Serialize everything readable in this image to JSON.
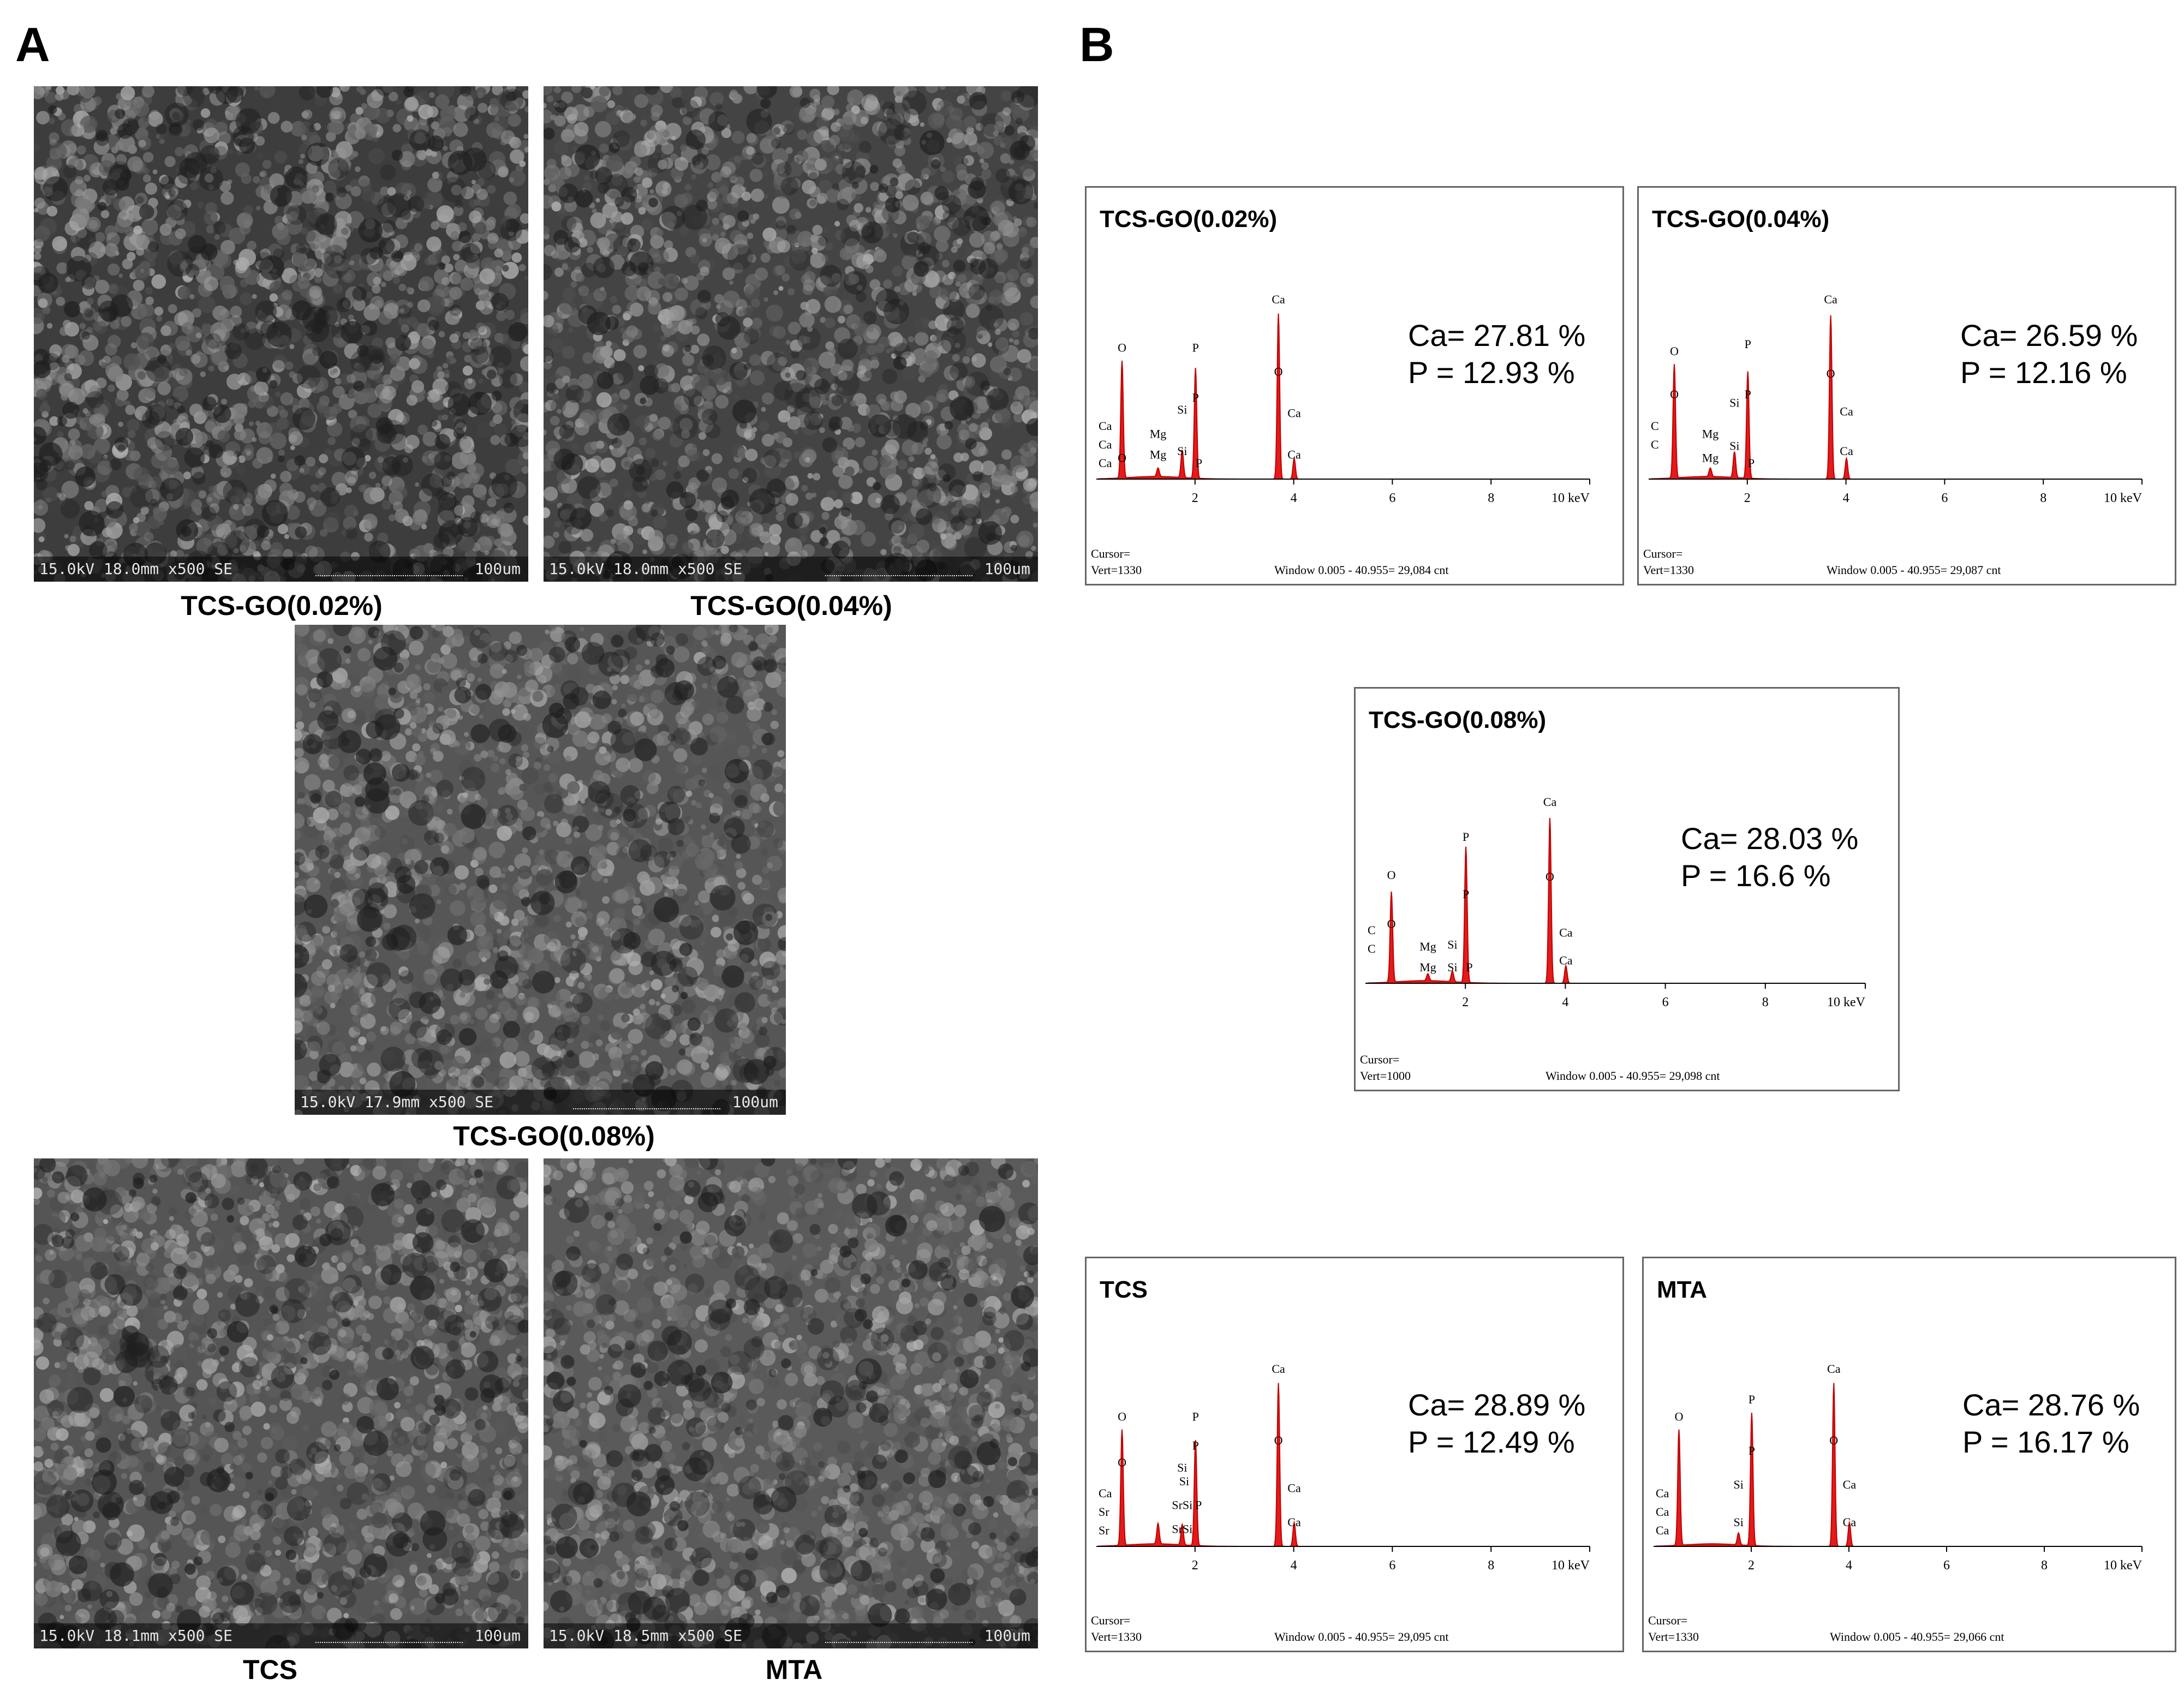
{
  "panels": {
    "a": "A",
    "b": "B"
  },
  "sem_images": [
    {
      "caption": "TCS-GO(0.02%)",
      "info": "15.0kV 18.0mm x500 SE",
      "scale": "100um",
      "tone": "#3d3d3d"
    },
    {
      "caption": "TCS-GO(0.04%)",
      "info": "15.0kV 18.0mm x500 SE",
      "scale": "100um",
      "tone": "#444444"
    },
    {
      "caption": "TCS-GO(0.08%)",
      "info": "15.0kV 17.9mm x500 SE",
      "scale": "100um",
      "tone": "#565656"
    },
    {
      "caption": "TCS",
      "info": "15.0kV 18.1mm x500 SE",
      "scale": "100um",
      "tone": "#555555"
    },
    {
      "caption": "MTA",
      "info": "15.0kV 18.5mm x500 SE",
      "scale": "100um",
      "tone": "#5a5a5a"
    }
  ],
  "edx_spectra": [
    {
      "title": "TCS-GO(0.02%)",
      "ca_text": "Ca=  27.81 %",
      "p_text": "P  =  12.93 %",
      "cursor": "Cursor=",
      "vert": "Vert=1330",
      "window": "Window 0.005 - 40.955=   29,084 cnt",
      "low_labels": [
        "Ca",
        "Ca",
        "Ca"
      ],
      "peak_labels": [
        {
          "kev": 0.52,
          "text": "O",
          "h": 0.72
        },
        {
          "kev": 0.52,
          "text": "O",
          "h": 0.08
        },
        {
          "kev": 1.25,
          "text": "Mg",
          "h": 0.22
        },
        {
          "kev": 1.25,
          "text": "Mg",
          "h": 0.1
        },
        {
          "kev": 1.74,
          "text": "Si",
          "h": 0.36
        },
        {
          "kev": 1.74,
          "text": "Si",
          "h": 0.12
        },
        {
          "kev": 2.01,
          "text": "P",
          "h": 0.72
        },
        {
          "kev": 2.01,
          "text": "P",
          "h": 0.43
        },
        {
          "kev": 2.08,
          "text": "P",
          "h": 0.05
        },
        {
          "kev": 3.69,
          "text": "Ca",
          "h": 1.0
        },
        {
          "kev": 3.69,
          "text": "O",
          "h": 0.58
        },
        {
          "kev": 4.01,
          "text": "Ca",
          "h": 0.34
        },
        {
          "kev": 4.01,
          "text": "Ca",
          "h": 0.1
        }
      ],
      "peaks": [
        {
          "kev": 0.52,
          "h": 0.68
        },
        {
          "kev": 1.25,
          "h": 0.05
        },
        {
          "kev": 1.74,
          "h": 0.16
        },
        {
          "kev": 2.01,
          "h": 0.64
        },
        {
          "kev": 3.69,
          "h": 0.96
        },
        {
          "kev": 4.01,
          "h": 0.12
        }
      ]
    },
    {
      "title": "TCS-GO(0.04%)",
      "ca_text": "Ca=  26.59 %",
      "p_text": "P  =  12.16 %",
      "cursor": "Cursor=",
      "vert": "Vert=1330",
      "window": "Window 0.005 - 40.955=   29,087 cnt",
      "low_labels": [
        "C",
        "C"
      ],
      "peak_labels": [
        {
          "kev": 0.52,
          "text": "O",
          "h": 0.7
        },
        {
          "kev": 0.52,
          "text": "O",
          "h": 0.45
        },
        {
          "kev": 1.25,
          "text": "Mg",
          "h": 0.22
        },
        {
          "kev": 1.25,
          "text": "Mg",
          "h": 0.08
        },
        {
          "kev": 1.74,
          "text": "Si",
          "h": 0.4
        },
        {
          "kev": 1.74,
          "text": "Si",
          "h": 0.15
        },
        {
          "kev": 2.01,
          "text": "P",
          "h": 0.74
        },
        {
          "kev": 2.01,
          "text": "P",
          "h": 0.45
        },
        {
          "kev": 2.08,
          "text": "P",
          "h": 0.05
        },
        {
          "kev": 3.69,
          "text": "Ca",
          "h": 1.0
        },
        {
          "kev": 3.69,
          "text": "O",
          "h": 0.57
        },
        {
          "kev": 4.01,
          "text": "Ca",
          "h": 0.35
        },
        {
          "kev": 4.01,
          "text": "Ca",
          "h": 0.12
        }
      ],
      "peaks": [
        {
          "kev": 0.52,
          "h": 0.66
        },
        {
          "kev": 1.25,
          "h": 0.05
        },
        {
          "kev": 1.74,
          "h": 0.15
        },
        {
          "kev": 2.01,
          "h": 0.62
        },
        {
          "kev": 3.69,
          "h": 0.95
        },
        {
          "kev": 4.01,
          "h": 0.12
        }
      ]
    },
    {
      "title": "TCS-GO(0.08%)",
      "ca_text": "Ca= 28.03 %",
      "p_text": "P  = 16.6 %",
      "cursor": "Cursor=",
      "vert": "Vert=1000",
      "window": "Window 0.005 - 40.955=   29,098 cnt",
      "low_labels": [
        "C",
        "C"
      ],
      "peak_labels": [
        {
          "kev": 0.52,
          "text": "O",
          "h": 0.58
        },
        {
          "kev": 0.52,
          "text": "O",
          "h": 0.3
        },
        {
          "kev": 1.25,
          "text": "Mg",
          "h": 0.17
        },
        {
          "kev": 1.25,
          "text": "Mg",
          "h": 0.05
        },
        {
          "kev": 1.74,
          "text": "Si",
          "h": 0.18
        },
        {
          "kev": 1.74,
          "text": "Si",
          "h": 0.05
        },
        {
          "kev": 2.01,
          "text": "P",
          "h": 0.8
        },
        {
          "kev": 2.01,
          "text": "P",
          "h": 0.47
        },
        {
          "kev": 2.08,
          "text": "P",
          "h": 0.05
        },
        {
          "kev": 3.69,
          "text": "Ca",
          "h": 1.0
        },
        {
          "kev": 3.69,
          "text": "O",
          "h": 0.57
        },
        {
          "kev": 4.01,
          "text": "Ca",
          "h": 0.25
        },
        {
          "kev": 4.01,
          "text": "Ca",
          "h": 0.09
        }
      ],
      "peaks": [
        {
          "kev": 0.52,
          "h": 0.52
        },
        {
          "kev": 1.25,
          "h": 0.04
        },
        {
          "kev": 1.74,
          "h": 0.06
        },
        {
          "kev": 2.01,
          "h": 0.78
        },
        {
          "kev": 3.69,
          "h": 0.95
        },
        {
          "kev": 4.01,
          "h": 0.1
        }
      ]
    },
    {
      "title": "TCS",
      "ca_text": "Ca= 28.89 %",
      "p_text": "P  = 12.49 %",
      "cursor": "Cursor=",
      "vert": "Vert=1330",
      "window": "Window 0.005 - 40.955=   29,095 cnt",
      "low_labels": [
        "Ca",
        "Sr",
        "Sr"
      ],
      "peak_labels": [
        {
          "kev": 0.52,
          "text": "O",
          "h": 0.72
        },
        {
          "kev": 0.52,
          "text": "O",
          "h": 0.45
        },
        {
          "kev": 1.74,
          "text": "Si",
          "h": 0.42
        },
        {
          "kev": 1.78,
          "text": "Si",
          "h": 0.34
        },
        {
          "kev": 1.74,
          "text": "SrSi",
          "h": 0.2
        },
        {
          "kev": 1.74,
          "text": "SrSi",
          "h": 0.06
        },
        {
          "kev": 2.01,
          "text": "P",
          "h": 0.72
        },
        {
          "kev": 2.01,
          "text": "P",
          "h": 0.55
        },
        {
          "kev": 2.07,
          "text": "P",
          "h": 0.2
        },
        {
          "kev": 3.69,
          "text": "Ca",
          "h": 1.0
        },
        {
          "kev": 3.69,
          "text": "O",
          "h": 0.58
        },
        {
          "kev": 4.01,
          "text": "Ca",
          "h": 0.3
        },
        {
          "kev": 4.01,
          "text": "Ca",
          "h": 0.1
        }
      ],
      "peaks": [
        {
          "kev": 0.52,
          "h": 0.68
        },
        {
          "kev": 1.25,
          "h": 0.12
        },
        {
          "kev": 1.74,
          "h": 0.12
        },
        {
          "kev": 2.01,
          "h": 0.62
        },
        {
          "kev": 3.69,
          "h": 0.96
        },
        {
          "kev": 4.01,
          "h": 0.14
        }
      ]
    },
    {
      "title": "MTA",
      "ca_text": "Ca= 28.76 %",
      "p_text": "P  = 16.17 %",
      "cursor": "Cursor=",
      "vert": "Vert=1330",
      "window": "Window 0.005 - 40.955=   29,066 cnt",
      "low_labels": [
        "Ca",
        "Ca",
        "Ca"
      ],
      "peak_labels": [
        {
          "kev": 0.52,
          "text": "O",
          "h": 0.72
        },
        {
          "kev": 1.74,
          "text": "Si",
          "h": 0.32
        },
        {
          "kev": 1.74,
          "text": "Si",
          "h": 0.1
        },
        {
          "kev": 2.01,
          "text": "P",
          "h": 0.82
        },
        {
          "kev": 2.01,
          "text": "P",
          "h": 0.52
        },
        {
          "kev": 3.69,
          "text": "Ca",
          "h": 1.0
        },
        {
          "kev": 3.69,
          "text": "O",
          "h": 0.58
        },
        {
          "kev": 4.01,
          "text": "Ca",
          "h": 0.32
        },
        {
          "kev": 4.01,
          "text": "Ca",
          "h": 0.1
        }
      ],
      "peaks": [
        {
          "kev": 0.52,
          "h": 0.68
        },
        {
          "kev": 1.74,
          "h": 0.07
        },
        {
          "kev": 2.01,
          "h": 0.78
        },
        {
          "kev": 3.69,
          "h": 0.96
        },
        {
          "kev": 4.01,
          "h": 0.14
        }
      ]
    }
  ],
  "edx_axis": {
    "ticks": [
      "2",
      "4",
      "6",
      "8",
      "10 keV"
    ],
    "tick_kev": [
      2,
      4,
      6,
      8,
      10
    ],
    "xlim": [
      0,
      10
    ]
  },
  "colors": {
    "spectrum_fill": "#e31b1b",
    "spectrum_stroke": "#c00000",
    "frame": "#666666"
  },
  "chart_data": [
    {
      "type": "area",
      "title": "TCS-GO(0.02%)",
      "xlabel": "keV",
      "xlim": [
        0,
        10
      ],
      "series": [
        {
          "values": [
            {
              "x": 0.52,
              "y": 0.68
            },
            {
              "x": 1.25,
              "y": 0.05
            },
            {
              "x": 1.74,
              "y": 0.16
            },
            {
              "x": 2.01,
              "y": 0.64
            },
            {
              "x": 3.69,
              "y": 0.96
            },
            {
              "x": 4.01,
              "y": 0.12
            }
          ]
        }
      ],
      "annotations": [
        "Ca=  27.81 %",
        "P  =  12.93 %"
      ]
    },
    {
      "type": "area",
      "title": "TCS-GO(0.04%)",
      "xlabel": "keV",
      "xlim": [
        0,
        10
      ],
      "series": [
        {
          "values": [
            {
              "x": 0.52,
              "y": 0.66
            },
            {
              "x": 1.25,
              "y": 0.05
            },
            {
              "x": 1.74,
              "y": 0.15
            },
            {
              "x": 2.01,
              "y": 0.62
            },
            {
              "x": 3.69,
              "y": 0.95
            },
            {
              "x": 4.01,
              "y": 0.12
            }
          ]
        }
      ],
      "annotations": [
        "Ca=  26.59 %",
        "P  =  12.16 %"
      ]
    },
    {
      "type": "area",
      "title": "TCS-GO(0.08%)",
      "xlabel": "keV",
      "xlim": [
        0,
        10
      ],
      "series": [
        {
          "values": [
            {
              "x": 0.52,
              "y": 0.52
            },
            {
              "x": 1.25,
              "y": 0.04
            },
            {
              "x": 1.74,
              "y": 0.06
            },
            {
              "x": 2.01,
              "y": 0.78
            },
            {
              "x": 3.69,
              "y": 0.95
            },
            {
              "x": 4.01,
              "y": 0.1
            }
          ]
        }
      ],
      "annotations": [
        "Ca= 28.03 %",
        "P  = 16.6 %"
      ]
    },
    {
      "type": "area",
      "title": "TCS",
      "xlabel": "keV",
      "xlim": [
        0,
        10
      ],
      "series": [
        {
          "values": [
            {
              "x": 0.52,
              "y": 0.68
            },
            {
              "x": 1.25,
              "y": 0.12
            },
            {
              "x": 1.74,
              "y": 0.12
            },
            {
              "x": 2.01,
              "y": 0.62
            },
            {
              "x": 3.69,
              "y": 0.96
            },
            {
              "x": 4.01,
              "y": 0.14
            }
          ]
        }
      ],
      "annotations": [
        "Ca= 28.89 %",
        "P  = 12.49 %"
      ]
    },
    {
      "type": "area",
      "title": "MTA",
      "xlabel": "keV",
      "xlim": [
        0,
        10
      ],
      "series": [
        {
          "values": [
            {
              "x": 0.52,
              "y": 0.68
            },
            {
              "x": 1.74,
              "y": 0.07
            },
            {
              "x": 2.01,
              "y": 0.78
            },
            {
              "x": 3.69,
              "y": 0.96
            },
            {
              "x": 4.01,
              "y": 0.14
            }
          ]
        }
      ],
      "annotations": [
        "Ca= 28.76 %",
        "P  = 16.17 %"
      ]
    }
  ]
}
